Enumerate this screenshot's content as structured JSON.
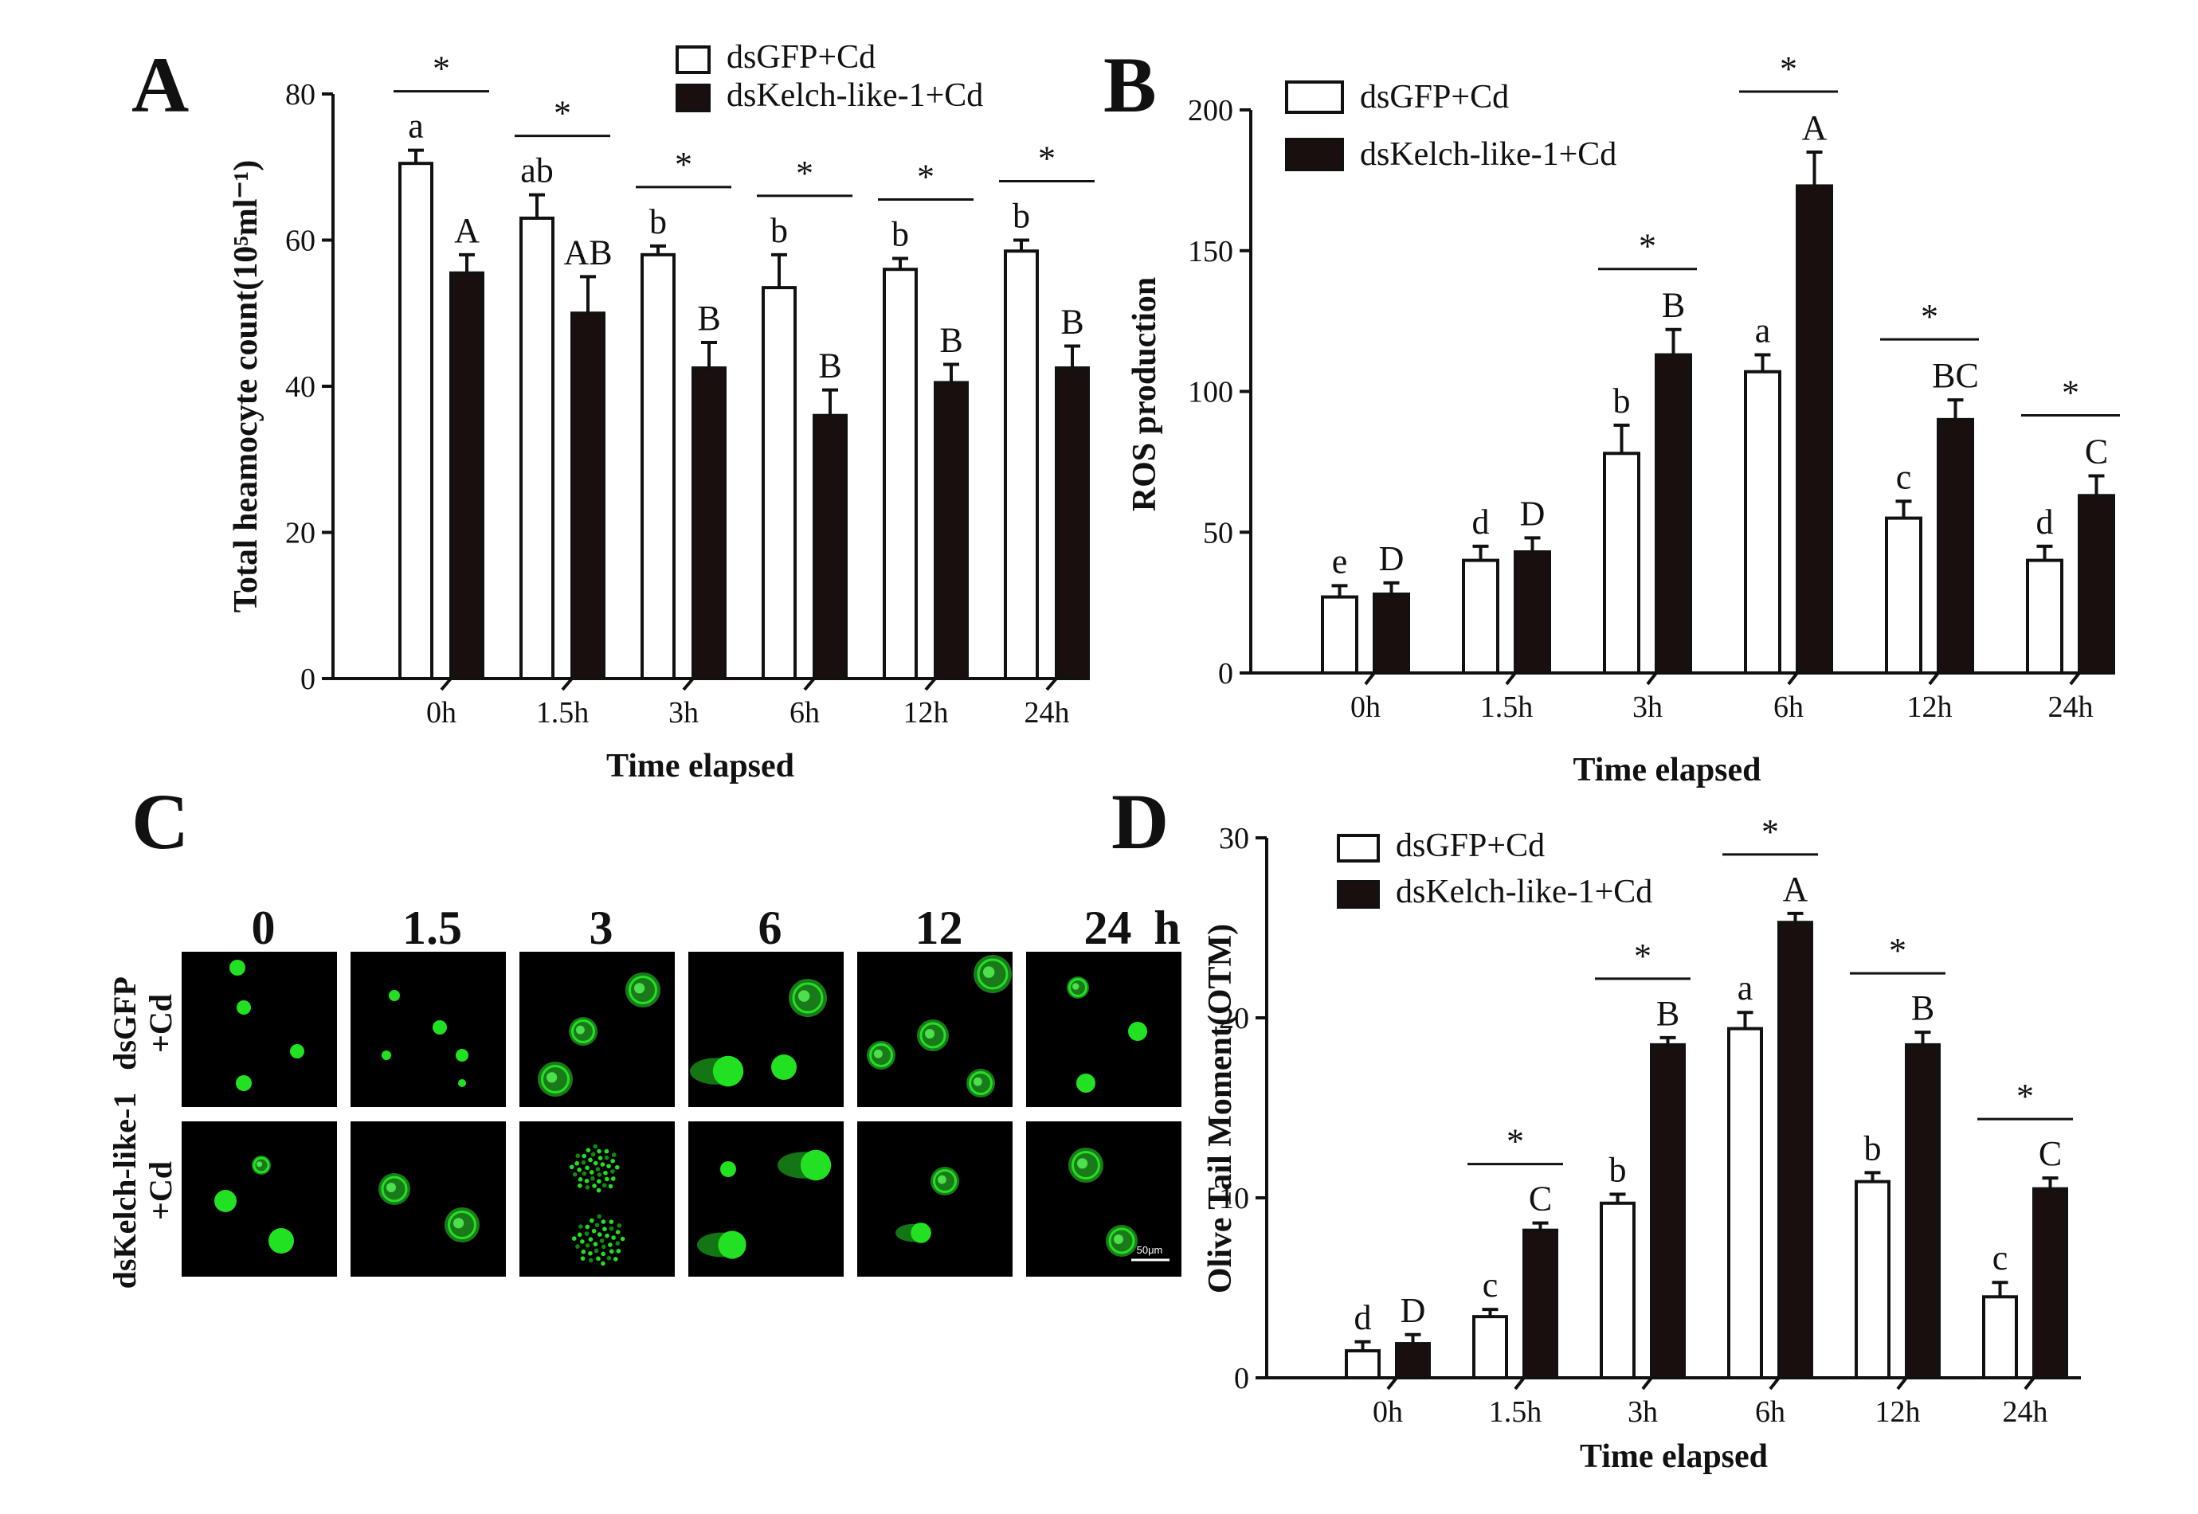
{
  "panels": {
    "a": "A",
    "b": "B",
    "c": "C",
    "d": "D"
  },
  "legend": {
    "gfp": "dsGFP+Cd",
    "kelch": "dsKelch-like-1+Cd"
  },
  "colors": {
    "gfp_fill": "#ffffff",
    "kelch_fill": "#1a0f0f",
    "cell_green": "#22e022",
    "stroke": "#111111"
  },
  "chart_data": [
    {
      "id": "A",
      "type": "bar",
      "categories": [
        "0h",
        "1.5h",
        "3h",
        "6h",
        "12h",
        "24h"
      ],
      "series": [
        {
          "name": "dsGFP+Cd",
          "values": [
            70.5,
            63,
            58,
            53.5,
            56,
            58.5
          ],
          "errors": [
            1.8,
            3.2,
            1.2,
            4.5,
            1.5,
            1.5
          ],
          "labels": [
            "a",
            "ab",
            "b",
            "b",
            "b",
            "b"
          ]
        },
        {
          "name": "dsKelch-like-1+Cd",
          "values": [
            55.5,
            50,
            42.5,
            36,
            40.5,
            42.5
          ],
          "errors": [
            2.5,
            5,
            3.5,
            3.5,
            2.5,
            3
          ],
          "labels": [
            "A",
            "AB",
            "B",
            "B",
            "B",
            "B"
          ]
        }
      ],
      "significance": [
        "*",
        "*",
        "*",
        "*",
        "*",
        "*"
      ],
      "xlabel": "Time elapsed",
      "ylabel": "Total heamocyte count(10⁵ml⁻¹)",
      "ylim": [
        0,
        80
      ],
      "yticks": [
        0,
        20,
        40,
        60,
        80
      ],
      "legend_position": "top-right"
    },
    {
      "id": "B",
      "type": "bar",
      "categories": [
        "0h",
        "1.5h",
        "3h",
        "6h",
        "12h",
        "24h"
      ],
      "series": [
        {
          "name": "dsGFP+Cd",
          "values": [
            27,
            40,
            78,
            107,
            55,
            40
          ],
          "errors": [
            4,
            5,
            10,
            6,
            6,
            5
          ],
          "labels": [
            "e",
            "d",
            "b",
            "a",
            "c",
            "d"
          ]
        },
        {
          "name": "dsKelch-like-1+Cd",
          "values": [
            28,
            43,
            113,
            173,
            90,
            63
          ],
          "errors": [
            4,
            5,
            9,
            12,
            7,
            7
          ],
          "labels": [
            "D",
            "D",
            "B",
            "A",
            "BC",
            "C"
          ]
        }
      ],
      "significance": [
        "",
        "",
        "*",
        "*",
        "*",
        "*"
      ],
      "xlabel": "Time elapsed",
      "ylabel": "ROS production",
      "ylim": [
        0,
        200
      ],
      "yticks": [
        0,
        50,
        100,
        150,
        200
      ],
      "legend_position": "top-left"
    },
    {
      "id": "D",
      "type": "bar",
      "categories": [
        "0h",
        "1.5h",
        "3h",
        "6h",
        "12h",
        "24h"
      ],
      "series": [
        {
          "name": "dsGFP+Cd",
          "values": [
            1.5,
            3.4,
            9.7,
            19.4,
            10.9,
            4.5
          ],
          "errors": [
            0.5,
            0.4,
            0.5,
            0.9,
            0.5,
            0.8
          ],
          "labels": [
            "d",
            "c",
            "b",
            "a",
            "b",
            "c"
          ]
        },
        {
          "name": "dsKelch-like-1+Cd",
          "values": [
            1.9,
            8.2,
            18.5,
            25.3,
            18.5,
            10.5
          ],
          "errors": [
            0.5,
            0.4,
            0.4,
            0.5,
            0.7,
            0.6
          ],
          "labels": [
            "D",
            "C",
            "B",
            "A",
            "B",
            "C"
          ]
        }
      ],
      "significance": [
        "",
        "*",
        "*",
        "*",
        "*",
        "*"
      ],
      "xlabel": "Time elapsed",
      "ylabel": "Olive Tail Moment(OTM)",
      "ylim": [
        0,
        30
      ],
      "yticks": [
        0,
        10,
        20,
        30
      ],
      "legend_position": "top-left"
    }
  ],
  "micrographs": {
    "time_labels": [
      "0",
      "1.5",
      "3",
      "6",
      "12",
      "24"
    ],
    "unit_label": "h",
    "rows": [
      {
        "label_line1": "dsGFP",
        "label_line2": "+Cd"
      },
      {
        "label_line1": "dsKelch-like-1",
        "label_line2": "+Cd"
      }
    ],
    "scale_bar_label": "50μm"
  }
}
